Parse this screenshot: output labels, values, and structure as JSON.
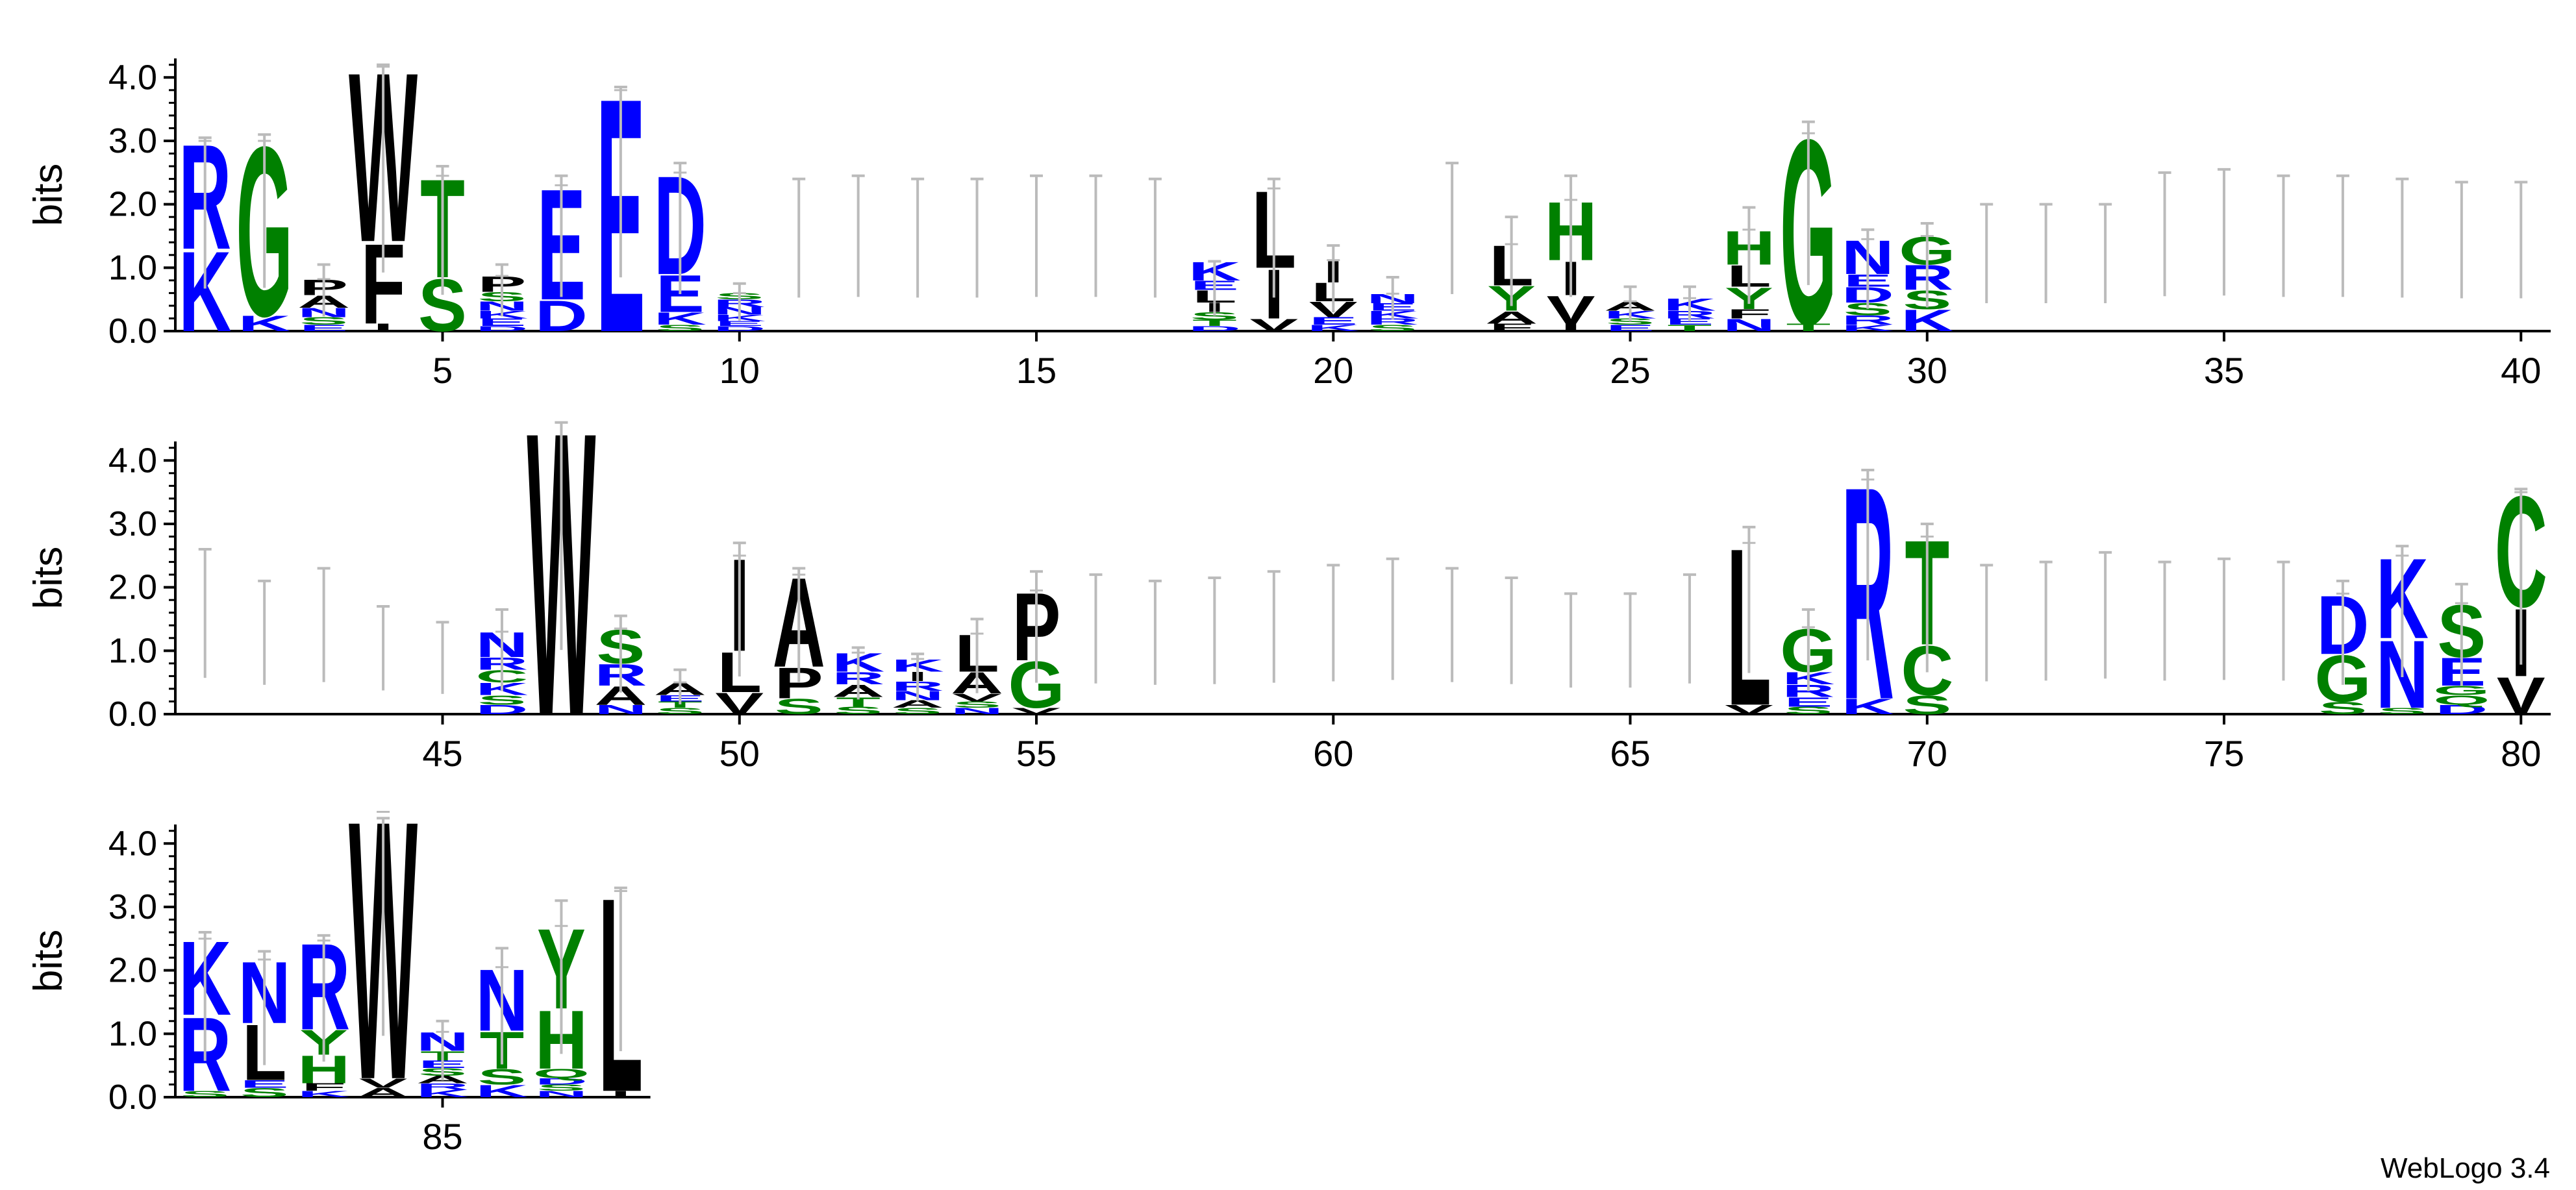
{
  "credit": "WebLogo 3.4",
  "colors": {
    "basic": "#0000ff",
    "polar": "#008000",
    "hydrophobic": "#000000",
    "errorbar": "#bbbbbb"
  },
  "chart_data": {
    "type": "sequence_logo",
    "ylabel": "bits",
    "ylim": [
      0,
      4.3
    ],
    "yticks": [
      "0.0",
      "1.0",
      "2.0",
      "3.0",
      "4.0"
    ],
    "xticks": [
      5,
      10,
      15,
      20,
      25,
      30,
      35,
      40,
      45,
      50,
      55,
      60,
      65,
      70,
      75,
      80,
      85
    ],
    "rows": [
      [
        1,
        40
      ],
      [
        41,
        80
      ],
      [
        81,
        88
      ]
    ],
    "positions": [
      {
        "pos": 1,
        "err": 3.05,
        "stack": [
          [
            "K",
            1.3
          ],
          [
            "R",
            1.7
          ]
        ]
      },
      {
        "pos": 2,
        "err": 3.1,
        "stack": [
          [
            "K",
            0.25
          ],
          [
            "G",
            2.75
          ]
        ]
      },
      {
        "pos": 3,
        "err": 1.05,
        "stack": [
          [
            "E",
            0.1
          ],
          [
            "S",
            0.12
          ],
          [
            "N",
            0.15
          ],
          [
            "A",
            0.2
          ],
          [
            "P",
            0.25
          ]
        ]
      },
      {
        "pos": 4,
        "err": 4.2,
        "stack": [
          [
            "I",
            0.12
          ],
          [
            "F",
            1.3
          ],
          [
            "W",
            2.75
          ]
        ]
      },
      {
        "pos": 5,
        "err": 2.6,
        "stack": [
          [
            "S",
            0.85
          ],
          [
            "T",
            1.6
          ]
        ]
      },
      {
        "pos": 6,
        "err": 1.05,
        "stack": [
          [
            "D",
            0.08
          ],
          [
            "E",
            0.12
          ],
          [
            "K",
            0.12
          ],
          [
            "N",
            0.15
          ],
          [
            "S",
            0.15
          ],
          [
            "P",
            0.25
          ]
        ]
      },
      {
        "pos": 7,
        "err": 2.45,
        "stack": [
          [
            "D",
            0.5
          ],
          [
            "E",
            1.8
          ]
        ]
      },
      {
        "pos": 8,
        "err": 3.85,
        "stack": [
          [
            "E",
            3.8
          ]
        ]
      },
      {
        "pos": 9,
        "err": 2.65,
        "stack": [
          [
            "S",
            0.1
          ],
          [
            "K",
            0.2
          ],
          [
            "E",
            0.6
          ],
          [
            "D",
            1.6
          ]
        ]
      },
      {
        "pos": 10,
        "err": 0.75,
        "stack": [
          [
            "D",
            0.08
          ],
          [
            "E",
            0.08
          ],
          [
            "K",
            0.1
          ],
          [
            "N",
            0.12
          ],
          [
            "R",
            0.12
          ],
          [
            "S",
            0.1
          ]
        ]
      },
      {
        "pos": 11,
        "err": 2.4,
        "stack": []
      },
      {
        "pos": 12,
        "err": 2.45,
        "stack": []
      },
      {
        "pos": 13,
        "err": 2.4,
        "stack": []
      },
      {
        "pos": 14,
        "err": 2.4,
        "stack": []
      },
      {
        "pos": 15,
        "err": 2.45,
        "stack": []
      },
      {
        "pos": 16,
        "err": 2.45,
        "stack": []
      },
      {
        "pos": 17,
        "err": 2.4,
        "stack": []
      },
      {
        "pos": 18,
        "err": 1.1,
        "stack": [
          [
            "D",
            0.08
          ],
          [
            "T",
            0.1
          ],
          [
            "S",
            0.12
          ],
          [
            "I",
            0.15
          ],
          [
            "L",
            0.2
          ],
          [
            "E",
            0.15
          ],
          [
            "K",
            0.3
          ]
        ]
      },
      {
        "pos": 19,
        "err": 2.4,
        "stack": [
          [
            "V",
            0.2
          ],
          [
            "I",
            0.8
          ],
          [
            "L",
            1.25
          ]
        ]
      },
      {
        "pos": 20,
        "err": 1.35,
        "stack": [
          [
            "K",
            0.1
          ],
          [
            "E",
            0.12
          ],
          [
            "V",
            0.25
          ],
          [
            "L",
            0.3
          ],
          [
            "I",
            0.35
          ]
        ]
      },
      {
        "pos": 21,
        "err": 0.85,
        "stack": [
          [
            "S",
            0.1
          ],
          [
            "R",
            0.1
          ],
          [
            "K",
            0.12
          ],
          [
            "E",
            0.12
          ],
          [
            "N",
            0.15
          ]
        ]
      },
      {
        "pos": 22,
        "err": 2.65,
        "stack": []
      },
      {
        "pos": 23,
        "err": 1.8,
        "stack": [
          [
            "F",
            0.12
          ],
          [
            "A",
            0.2
          ],
          [
            "Y",
            0.4
          ],
          [
            "L",
            0.65
          ]
        ]
      },
      {
        "pos": 24,
        "err": 2.45,
        "stack": [
          [
            "I",
            0.12
          ],
          [
            "V",
            0.45
          ],
          [
            "I",
            0.55
          ],
          [
            "H",
            0.95
          ]
        ]
      },
      {
        "pos": 25,
        "err": 0.7,
        "stack": [
          [
            "E",
            0.1
          ],
          [
            "S",
            0.1
          ],
          [
            "K",
            0.12
          ],
          [
            "A",
            0.15
          ]
        ]
      },
      {
        "pos": 26,
        "err": 0.7,
        "stack": [
          [
            "T",
            0.1
          ],
          [
            "E",
            0.1
          ],
          [
            "R",
            0.12
          ],
          [
            "K",
            0.2
          ]
        ]
      },
      {
        "pos": 27,
        "err": 1.95,
        "stack": [
          [
            "N",
            0.2
          ],
          [
            "F",
            0.15
          ],
          [
            "Y",
            0.35
          ],
          [
            "L",
            0.35
          ],
          [
            "H",
            0.55
          ]
        ]
      },
      {
        "pos": 28,
        "err": 3.3,
        "stack": [
          [
            "T",
            0.12
          ],
          [
            "G",
            3.0
          ]
        ]
      },
      {
        "pos": 29,
        "err": 1.6,
        "stack": [
          [
            "K",
            0.1
          ],
          [
            "R",
            0.15
          ],
          [
            "S",
            0.2
          ],
          [
            "D",
            0.25
          ],
          [
            "E",
            0.2
          ],
          [
            "N",
            0.55
          ]
        ]
      },
      {
        "pos": 30,
        "err": 1.7,
        "stack": [
          [
            "K",
            0.35
          ],
          [
            "S",
            0.3
          ],
          [
            "R",
            0.4
          ],
          [
            "G",
            0.45
          ]
        ]
      },
      {
        "pos": 31,
        "err": 2.0,
        "stack": []
      },
      {
        "pos": 32,
        "err": 2.0,
        "stack": []
      },
      {
        "pos": 33,
        "err": 2.0,
        "stack": []
      },
      {
        "pos": 34,
        "err": 2.5,
        "stack": []
      },
      {
        "pos": 35,
        "err": 2.55,
        "stack": []
      },
      {
        "pos": 36,
        "err": 2.45,
        "stack": []
      },
      {
        "pos": 37,
        "err": 2.45,
        "stack": []
      },
      {
        "pos": 38,
        "err": 2.4,
        "stack": []
      },
      {
        "pos": 39,
        "err": 2.35,
        "stack": []
      },
      {
        "pos": 40,
        "err": 2.35,
        "stack": []
      },
      {
        "pos": 41,
        "err": 2.6,
        "stack": []
      },
      {
        "pos": 42,
        "err": 2.1,
        "stack": []
      },
      {
        "pos": 43,
        "err": 2.3,
        "stack": []
      },
      {
        "pos": 44,
        "err": 1.7,
        "stack": []
      },
      {
        "pos": 45,
        "err": 1.45,
        "stack": []
      },
      {
        "pos": 46,
        "err": 1.65,
        "stack": [
          [
            "D",
            0.15
          ],
          [
            "S",
            0.15
          ],
          [
            "K",
            0.2
          ],
          [
            "C",
            0.2
          ],
          [
            "R",
            0.2
          ],
          [
            "N",
            0.4
          ]
        ]
      },
      {
        "pos": 47,
        "err": 4.6,
        "stack": [
          [
            "W",
            4.6
          ]
        ]
      },
      {
        "pos": 48,
        "err": 1.55,
        "stack": [
          [
            "N",
            0.15
          ],
          [
            "A",
            0.3
          ],
          [
            "R",
            0.35
          ],
          [
            "S",
            0.55
          ]
        ]
      },
      {
        "pos": 49,
        "err": 0.7,
        "stack": [
          [
            "S",
            0.1
          ],
          [
            "T",
            0.1
          ],
          [
            "E",
            0.1
          ],
          [
            "A",
            0.2
          ]
        ]
      },
      {
        "pos": 50,
        "err": 2.7,
        "stack": [
          [
            "V",
            0.35
          ],
          [
            "L",
            0.65
          ],
          [
            "I",
            1.5
          ]
        ]
      },
      {
        "pos": 51,
        "err": 2.3,
        "stack": [
          [
            "S",
            0.25
          ],
          [
            "P",
            0.5
          ],
          [
            "A",
            1.45
          ]
        ]
      },
      {
        "pos": 52,
        "err": 1.05,
        "stack": [
          [
            "S",
            0.12
          ],
          [
            "T",
            0.15
          ],
          [
            "A",
            0.2
          ],
          [
            "R",
            0.2
          ],
          [
            "K",
            0.3
          ]
        ]
      },
      {
        "pos": 53,
        "err": 0.95,
        "stack": [
          [
            "S",
            0.1
          ],
          [
            "A",
            0.12
          ],
          [
            "N",
            0.15
          ],
          [
            "R",
            0.15
          ],
          [
            "I",
            0.15
          ],
          [
            "K",
            0.2
          ]
        ]
      },
      {
        "pos": 54,
        "err": 1.5,
        "stack": [
          [
            "N",
            0.1
          ],
          [
            "S",
            0.1
          ],
          [
            "V",
            0.12
          ],
          [
            "A",
            0.35
          ],
          [
            "L",
            0.6
          ]
        ]
      },
      {
        "pos": 55,
        "err": 2.25,
        "stack": [
          [
            "V",
            0.1
          ],
          [
            "G",
            0.75
          ],
          [
            "P",
            1.1
          ]
        ]
      },
      {
        "pos": 56,
        "err": 2.2,
        "stack": []
      },
      {
        "pos": 57,
        "err": 2.1,
        "stack": []
      },
      {
        "pos": 58,
        "err": 2.15,
        "stack": []
      },
      {
        "pos": 59,
        "err": 2.25,
        "stack": []
      },
      {
        "pos": 60,
        "err": 2.35,
        "stack": []
      },
      {
        "pos": 61,
        "err": 2.45,
        "stack": []
      },
      {
        "pos": 62,
        "err": 2.3,
        "stack": []
      },
      {
        "pos": 63,
        "err": 2.15,
        "stack": []
      },
      {
        "pos": 64,
        "err": 1.9,
        "stack": []
      },
      {
        "pos": 65,
        "err": 1.9,
        "stack": []
      },
      {
        "pos": 66,
        "err": 2.2,
        "stack": []
      },
      {
        "pos": 67,
        "err": 2.95,
        "stack": [
          [
            "V",
            0.15
          ],
          [
            "L",
            2.55
          ]
        ]
      },
      {
        "pos": 68,
        "err": 1.65,
        "stack": [
          [
            "S",
            0.12
          ],
          [
            "E",
            0.15
          ],
          [
            "R",
            0.2
          ],
          [
            "K",
            0.2
          ],
          [
            "G",
            0.7
          ]
        ]
      },
      {
        "pos": 69,
        "err": 3.85,
        "stack": [
          [
            "K",
            0.25
          ],
          [
            "R",
            3.45
          ]
        ]
      },
      {
        "pos": 70,
        "err": 3.0,
        "stack": [
          [
            "S",
            0.3
          ],
          [
            "C",
            0.8
          ],
          [
            "T",
            1.7
          ]
        ]
      },
      {
        "pos": 71,
        "err": 2.35,
        "stack": []
      },
      {
        "pos": 72,
        "err": 2.4,
        "stack": []
      },
      {
        "pos": 73,
        "err": 2.55,
        "stack": []
      },
      {
        "pos": 74,
        "err": 2.4,
        "stack": []
      },
      {
        "pos": 75,
        "err": 2.45,
        "stack": []
      },
      {
        "pos": 76,
        "err": 2.4,
        "stack": []
      },
      {
        "pos": 77,
        "err": 2.1,
        "stack": [
          [
            "S",
            0.2
          ],
          [
            "G",
            0.75
          ],
          [
            "D",
            0.95
          ]
        ]
      },
      {
        "pos": 78,
        "err": 2.65,
        "stack": [
          [
            "S",
            0.1
          ],
          [
            "N",
            1.1
          ],
          [
            "K",
            1.3
          ]
        ]
      },
      {
        "pos": 79,
        "err": 2.05,
        "stack": [
          [
            "D",
            0.15
          ],
          [
            "Q",
            0.15
          ],
          [
            "G",
            0.15
          ],
          [
            "E",
            0.45
          ],
          [
            "S",
            0.85
          ]
        ]
      },
      {
        "pos": 80,
        "err": 3.55,
        "stack": [
          [
            "V",
            0.6
          ],
          [
            "I",
            1.1
          ],
          [
            "C",
            1.8
          ]
        ]
      },
      {
        "pos": 81,
        "err": 2.6,
        "stack": [
          [
            "S",
            0.1
          ],
          [
            "R",
            1.2
          ],
          [
            "K",
            1.2
          ]
        ]
      },
      {
        "pos": 82,
        "err": 2.3,
        "stack": [
          [
            "S",
            0.15
          ],
          [
            "E",
            0.12
          ],
          [
            "L",
            0.9
          ],
          [
            "N",
            1.0
          ]
        ]
      },
      {
        "pos": 83,
        "err": 2.55,
        "stack": [
          [
            "K",
            0.1
          ],
          [
            "F",
            0.12
          ],
          [
            "H",
            0.45
          ],
          [
            "Y",
            0.4
          ],
          [
            "R",
            1.4
          ]
        ]
      },
      {
        "pos": 84,
        "err": 4.4,
        "stack": [
          [
            "A",
            0.15
          ],
          [
            "V",
            0.15
          ],
          [
            "W",
            4.2
          ]
        ]
      },
      {
        "pos": 85,
        "err": 1.2,
        "stack": [
          [
            "K",
            0.12
          ],
          [
            "R",
            0.1
          ],
          [
            "A",
            0.12
          ],
          [
            "S",
            0.12
          ],
          [
            "E",
            0.12
          ],
          [
            "T",
            0.15
          ],
          [
            "N",
            0.3
          ]
        ]
      },
      {
        "pos": 86,
        "err": 2.35,
        "stack": [
          [
            "K",
            0.2
          ],
          [
            "S",
            0.25
          ],
          [
            "T",
            0.6
          ],
          [
            "N",
            1.0
          ]
        ]
      },
      {
        "pos": 87,
        "err": 3.1,
        "stack": [
          [
            "N",
            0.1
          ],
          [
            "S",
            0.1
          ],
          [
            "D",
            0.1
          ],
          [
            "Q",
            0.15
          ],
          [
            "H",
            0.95
          ],
          [
            "Y",
            1.3
          ]
        ]
      },
      {
        "pos": 88,
        "err": 3.3,
        "stack": [
          [
            "I",
            0.1
          ],
          [
            "L",
            3.15
          ]
        ]
      }
    ]
  }
}
